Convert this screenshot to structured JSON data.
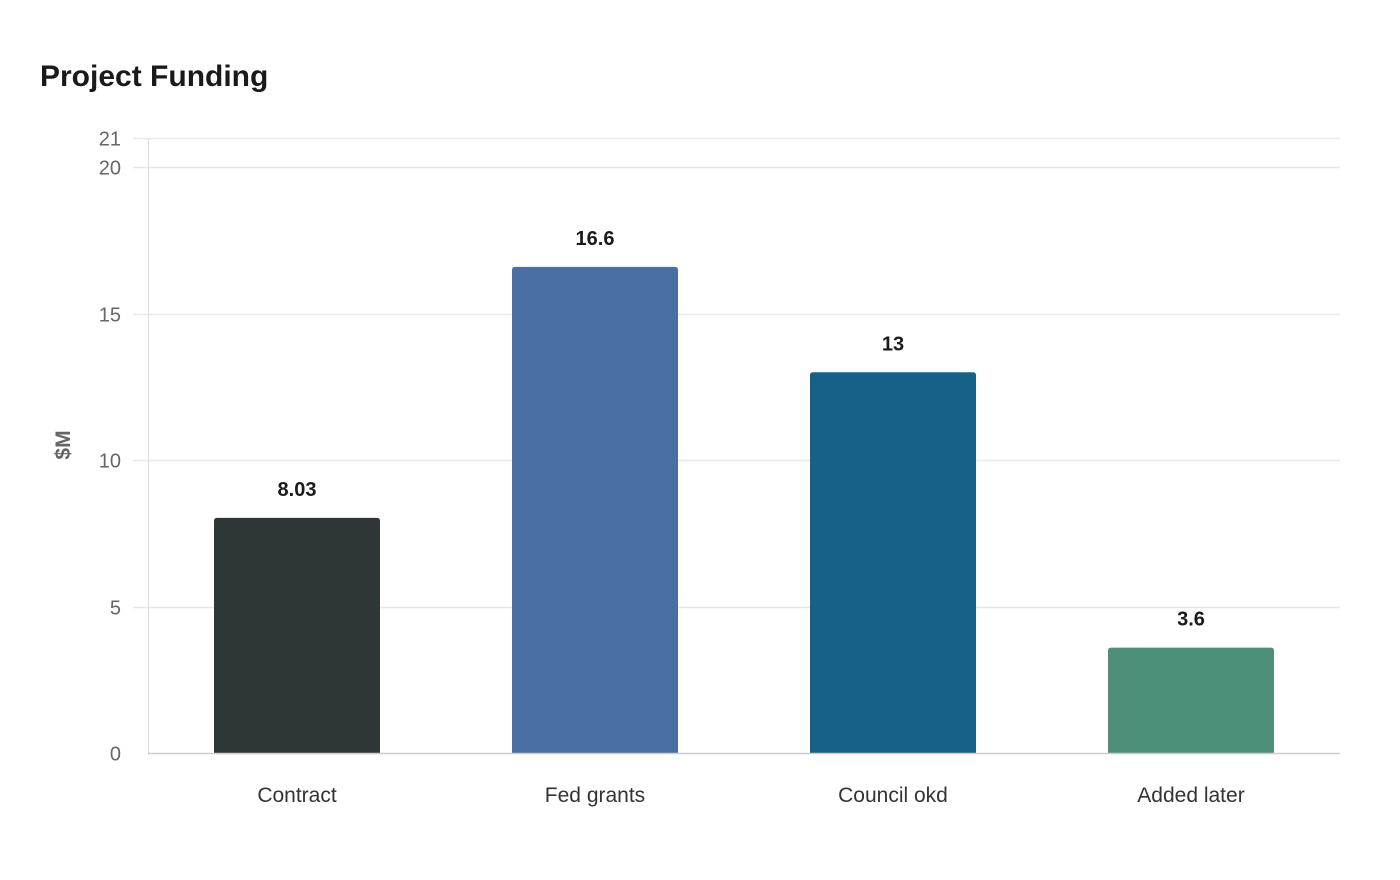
{
  "chart_data": {
    "type": "bar",
    "title": "Project Funding",
    "xlabel": "",
    "ylabel": "$M",
    "ylim": [
      0,
      21
    ],
    "yticks": [
      0,
      5,
      10,
      15,
      20,
      21
    ],
    "grid": true,
    "categories": [
      "Contract",
      "Fed grants",
      "Council okd",
      "Added later"
    ],
    "values": [
      8.03,
      16.6,
      13,
      3.6
    ],
    "data_labels": [
      "8.03",
      "16.6",
      "13",
      "3.6"
    ],
    "colors": [
      "#2e3638",
      "#4a6fa5",
      "#176087",
      "#4e8f7a"
    ]
  }
}
